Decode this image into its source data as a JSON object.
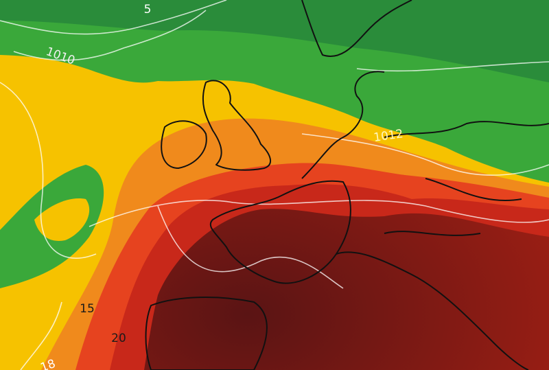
{
  "map": {
    "labels": [
      {
        "text": "5"
      },
      {
        "text": "1010"
      },
      {
        "text": "1012"
      },
      {
        "text": "15"
      },
      {
        "text": "20"
      },
      {
        "text": "18"
      }
    ]
  }
}
